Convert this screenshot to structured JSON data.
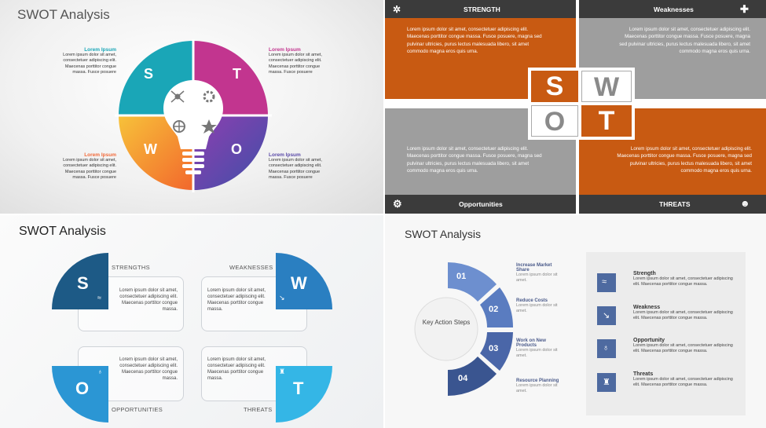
{
  "slide1": {
    "title": "SWOT Analysis",
    "letters": [
      "S",
      "T",
      "W",
      "O"
    ],
    "items": [
      {
        "label": "Lorem Ipsum",
        "text": "Lorem ipsum dolor sit amet, consectetuer adipiscing elit. Maecenas porttitor congue massa. Fusce posuere",
        "color": "#1aa6b7"
      },
      {
        "label": "Lorem Ipsum",
        "text": "Lorem ipsum dolor sit amet, consectetuer adipiscing elit. Maecenas porttitor congue massa. Fusce posuere",
        "color": "#c2358f"
      },
      {
        "label": "Lorem Ipsum",
        "text": "Lorem ipsum dolor sit amet, consectetuer adipiscing elit. Maecenas porttitor congue massa. Fusce posuere",
        "color": "#f26a3a"
      },
      {
        "label": "Lorem Ipsum",
        "text": "Lorem ipsum dolor sit amet, consectetuer adipiscing elit. Maecenas porttitor congue massa. Fusce posuere",
        "color": "#5a49a8"
      }
    ]
  },
  "slide2": {
    "strength": "STRENGTH",
    "weaknesses": "Weaknesses",
    "opportunities": "Opportunities",
    "threats": "THREATS",
    "text_top": "Lorem ipsum dolor sit amet, consectetuer adipiscing elit. Maecenas porttitor congue massa. Fusce posuere, magna sed pulvinar ultricies, purus lectus malesuada libero, sit amet commodo magna eros quis urna.",
    "letters": [
      "S",
      "W",
      "O",
      "T"
    ],
    "colors": {
      "orange": "#c85a12",
      "gray": "#9e9e9e",
      "dark": "#3b3b3b"
    }
  },
  "slide3": {
    "title": "SWOT Analysis",
    "captions": [
      "STRENGTHS",
      "WEAKNESSES",
      "OPPORTUNITIES",
      "THREATS"
    ],
    "letters": [
      "S",
      "W",
      "O",
      "T"
    ],
    "text": "Lorem ipsum dolor sit amet, consectetuer adipiscing elit. Maecenas porttitor congue massa."
  },
  "slide4": {
    "title": "SWOT Analysis",
    "center": "Key Action Steps",
    "steps": [
      {
        "num": "01",
        "head": "Increase Market Share",
        "text": "Lorem ipsum dolor sit amet."
      },
      {
        "num": "02",
        "head": "Reduce Costs",
        "text": "Lorem ipsum dolor sit amet."
      },
      {
        "num": "03",
        "head": "Work on New Products",
        "text": "Lorem ipsum dolor sit amet."
      },
      {
        "num": "04",
        "head": "Resource Planning",
        "text": "Lorem ipsum dolor sit amet."
      }
    ],
    "panel": [
      {
        "head": "Strength",
        "text": "Lorem ipsum dolor sit amet, consectetuer adipiscing elit. Maecenas porttitor congue massa."
      },
      {
        "head": "Weakness",
        "text": "Lorem ipsum dolor sit amet, consectetuer adipiscing elit. Maecenas porttitor congue massa."
      },
      {
        "head": "Opportunity",
        "text": "Lorem ipsum dolor sit amet, consectetuer adipiscing elit. Maecenas porttitor congue massa."
      },
      {
        "head": "Threats",
        "text": "Lorem ipsum dolor sit amet, consectetuer adipiscing elit. Maecenas porttitor congue massa."
      }
    ]
  }
}
